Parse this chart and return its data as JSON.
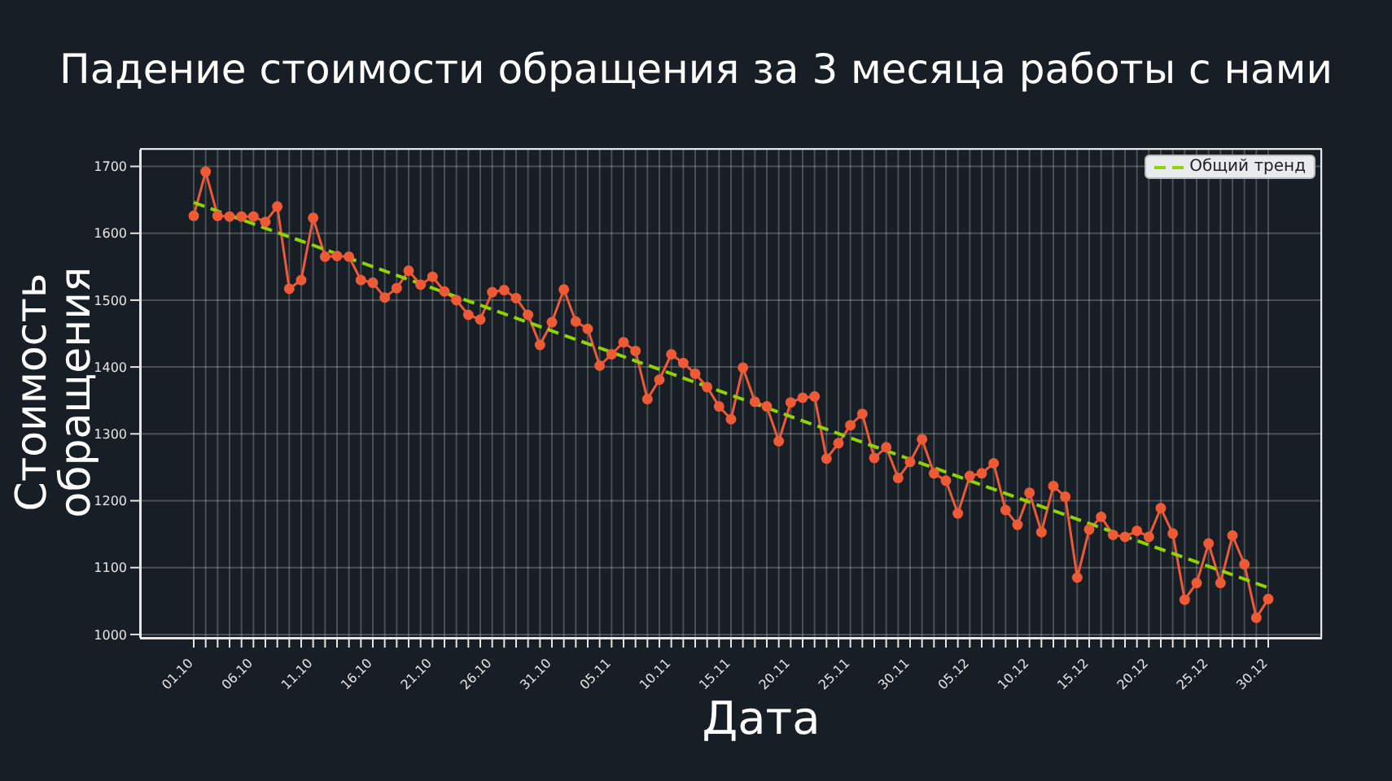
{
  "chart_data": {
    "type": "line",
    "title": "Падение стоимости обращения за 3 месяца работы с нами",
    "xlabel": "Дата",
    "ylabel": "Стоимость обращения",
    "categories": [
      "01.10",
      null,
      null,
      null,
      null,
      "06.10",
      null,
      null,
      null,
      null,
      "11.10",
      null,
      null,
      null,
      null,
      "16.10",
      null,
      null,
      null,
      null,
      "21.10",
      null,
      null,
      null,
      null,
      "26.10",
      null,
      null,
      null,
      null,
      "31.10",
      null,
      null,
      null,
      null,
      "05.11",
      null,
      null,
      null,
      null,
      "10.11",
      null,
      null,
      null,
      null,
      "15.11",
      null,
      null,
      null,
      null,
      "20.11",
      null,
      null,
      null,
      null,
      "25.11",
      null,
      null,
      null,
      null,
      "30.11",
      null,
      null,
      null,
      null,
      "05.12",
      null,
      null,
      null,
      null,
      "10.12",
      null,
      null,
      null,
      null,
      "15.12",
      null,
      null,
      null,
      null,
      "20.12",
      null,
      null,
      null,
      null,
      "25.12",
      null,
      null,
      null,
      null,
      "30.12"
    ],
    "series": [
      {
        "color": "#ee5a36",
        "marker": "circle",
        "line_style": "solid",
        "values": [
          1626,
          1692,
          1626,
          1625,
          1625,
          1625,
          1617,
          1640,
          1517,
          1530,
          1623,
          1565,
          1566,
          1565,
          1530,
          1526,
          1504,
          1518,
          1544,
          1523,
          1535,
          1513,
          1500,
          1478,
          1471,
          1512,
          1515,
          1503,
          1478,
          1433,
          1467,
          1516,
          1468,
          1457,
          1402,
          1419,
          1437,
          1424,
          1352,
          1381,
          1419,
          1406,
          1390,
          1370,
          1341,
          1322,
          1399,
          1348,
          1341,
          1289,
          1347,
          1354,
          1356,
          1263,
          1286,
          1313,
          1330,
          1264,
          1280,
          1234,
          1258,
          1292,
          1241,
          1230,
          1181,
          1237,
          1241,
          1256,
          1186,
          1164,
          1212,
          1153,
          1222,
          1206,
          1085,
          1157,
          1176,
          1149,
          1146,
          1155,
          1146,
          1189,
          1151,
          1052,
          1077,
          1136,
          1077,
          1148,
          1105,
          1025,
          1053
        ]
      },
      {
        "type": "line",
        "name": "Общий тренд",
        "color": "#8fd400",
        "marker": "none",
        "line_style": "dashed",
        "x": [
          "01.10",
          "30.12"
        ],
        "values": [
          1646,
          1070
        ]
      }
    ],
    "ylim": [
      995,
      1725
    ],
    "yticks": [
      1000,
      1100,
      1200,
      1300,
      1400,
      1500,
      1600,
      1700
    ],
    "grid": true,
    "legend": "top right"
  }
}
